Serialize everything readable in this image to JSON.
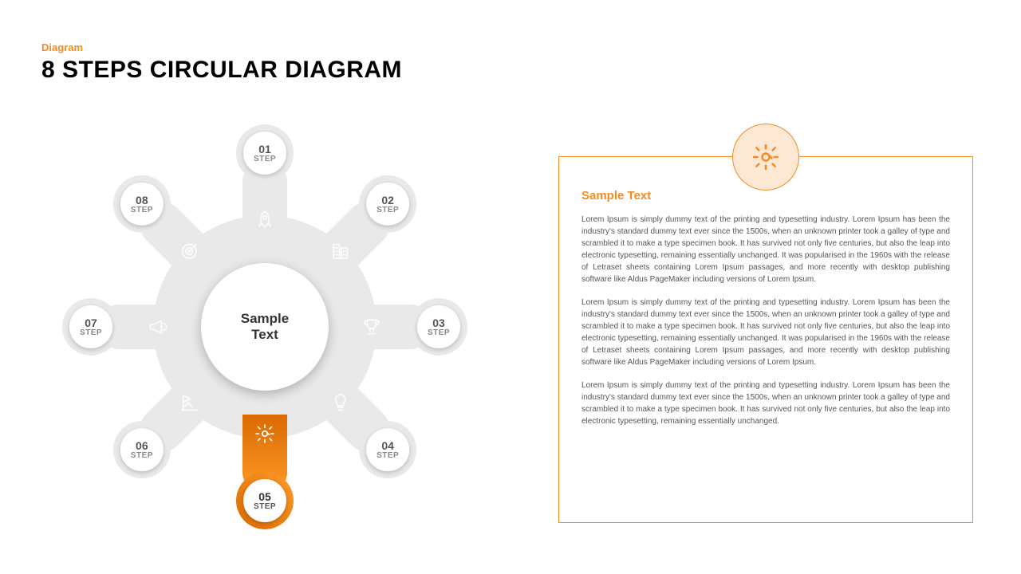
{
  "header": {
    "subtitle": "Diagram",
    "subtitle_color": "#f58a1f",
    "title": "8 STEPS CIRCULAR DIAGRAM",
    "title_color": "#000000"
  },
  "colors": {
    "accent": "#f58a1f",
    "accent_light": "#fde8d4",
    "inactive": "#e9e9e9",
    "bg": "#ffffff",
    "text_body": "#555555"
  },
  "diagram": {
    "type": "circular-steps",
    "center_label_line1": "Sample",
    "center_label_line2": "Text",
    "step_word": "STEP",
    "active_index": 4,
    "steps": [
      {
        "num": "01",
        "angle": -90,
        "icon": "rocket"
      },
      {
        "num": "02",
        "angle": -45,
        "icon": "building"
      },
      {
        "num": "03",
        "angle": 0,
        "icon": "trophy"
      },
      {
        "num": "04",
        "angle": 45,
        "icon": "bulb"
      },
      {
        "num": "05",
        "angle": 90,
        "icon": "gear"
      },
      {
        "num": "06",
        "angle": 135,
        "icon": "flag"
      },
      {
        "num": "07",
        "angle": 180,
        "icon": "megaphone"
      },
      {
        "num": "08",
        "angle": 225,
        "icon": "target"
      }
    ]
  },
  "panel": {
    "border_color": "#f58a1f",
    "icon_bg": "#fde8d4",
    "heading": "Sample Text",
    "paragraphs": [
      "Lorem Ipsum is simply dummy text of the printing and typesetting industry. Lorem Ipsum has been the industry's standard dummy text ever since the 1500s, when an unknown printer took a galley of type and scrambled it to make a type specimen book. It has survived not only five centuries, but also the leap into electronic typesetting, remaining essentially unchanged. It was popularised in the 1960s with the release of Letraset sheets containing Lorem Ipsum passages, and more recently with desktop publishing software like Aldus PageMaker including versions of Lorem Ipsum.",
      "Lorem Ipsum is simply dummy text of the printing and typesetting industry. Lorem Ipsum has been the industry's standard dummy text ever since the 1500s, when an unknown printer took a galley of type and scrambled it to make a type specimen book. It has survived not only five centuries, but also the leap into electronic typesetting, remaining essentially unchanged. It was popularised in the 1960s with the release of Letraset sheets containing Lorem Ipsum passages, and more recently with desktop publishing software like Aldus PageMaker including versions of Lorem Ipsum.",
      "Lorem Ipsum is simply dummy text of the printing and typesetting industry. Lorem Ipsum has been the industry's standard dummy text ever since the 1500s, when an unknown printer took a galley of type and scrambled it to make a type specimen book. It has survived not only five centuries, but also the leap into electronic typesetting, remaining essentially unchanged."
    ]
  }
}
